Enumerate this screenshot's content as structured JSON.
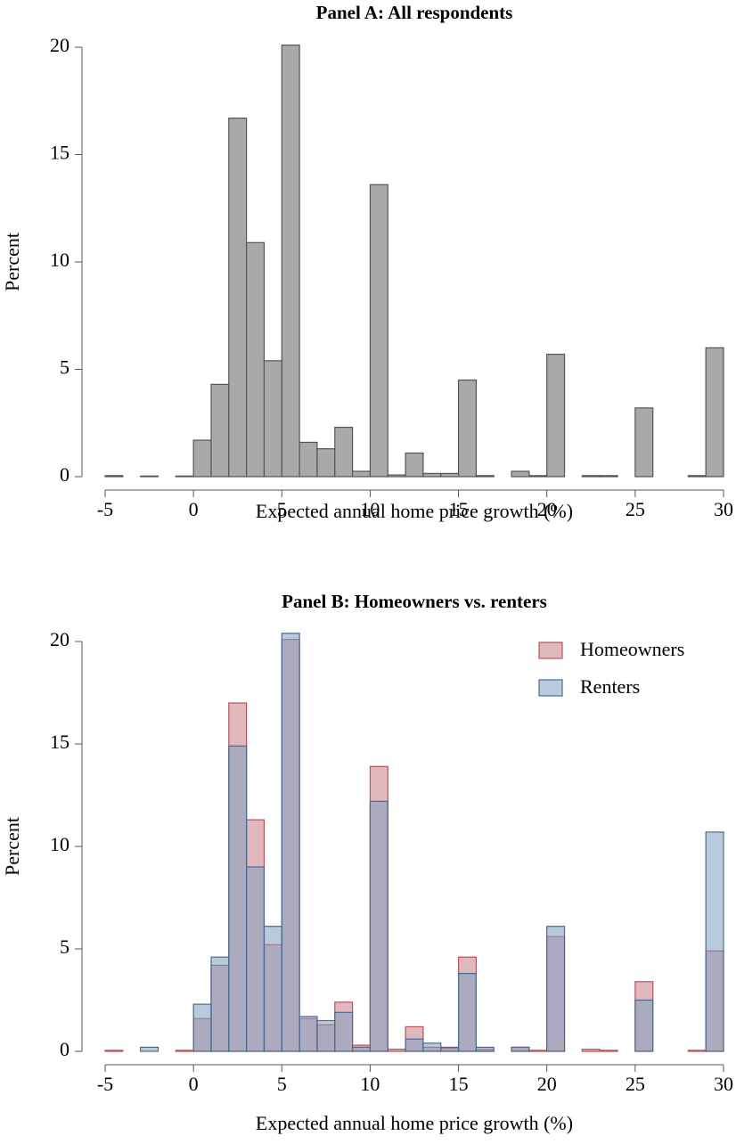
{
  "chart_data": [
    {
      "type": "histogram",
      "title": "Panel A: All respondents",
      "x_label": "Expected annual home price growth (%)",
      "y_label": "Percent",
      "bins": [
        -5,
        -4,
        -3,
        -2,
        -1,
        0,
        1,
        2,
        3,
        4,
        5,
        6,
        7,
        8,
        9,
        10,
        11,
        12,
        13,
        14,
        15,
        16,
        17,
        18,
        19,
        20,
        21,
        22,
        23,
        24,
        25,
        26,
        27,
        28,
        29,
        30
      ],
      "series": [
        {
          "name": null,
          "color": "#a9a9a9",
          "values": [
            0.05,
            0,
            0.03,
            0,
            0.03,
            1.7,
            4.3,
            16.7,
            10.9,
            5.4,
            20.1,
            1.6,
            1.3,
            2.3,
            0.25,
            13.6,
            0.08,
            1.1,
            0.15,
            0.15,
            4.5,
            0.05,
            0,
            0.25,
            0.05,
            5.7,
            0,
            0.05,
            0.05,
            0,
            3.2,
            0,
            0,
            0.05,
            6.0
          ]
        }
      ],
      "xlim": [
        -5,
        30
      ],
      "ylim": [
        0,
        20
      ],
      "xticks": [
        -5,
        0,
        5,
        10,
        15,
        20,
        25,
        30
      ],
      "yticks": [
        0,
        5,
        10,
        15,
        20
      ]
    },
    {
      "type": "histogram",
      "title": "Panel B: Homeowners vs. renters",
      "x_label": "Expected annual home price growth (%)",
      "y_label": "Percent",
      "bins": [
        -5,
        -4,
        -3,
        -2,
        -1,
        0,
        1,
        2,
        3,
        4,
        5,
        6,
        7,
        8,
        9,
        10,
        11,
        12,
        13,
        14,
        15,
        16,
        17,
        18,
        19,
        20,
        21,
        22,
        23,
        24,
        25,
        26,
        27,
        28,
        29,
        30
      ],
      "series": [
        {
          "name": "Homeowners",
          "color": "#c97d86",
          "values": [
            0.05,
            0,
            0,
            0,
            0.05,
            1.6,
            4.2,
            17.0,
            11.3,
            5.2,
            20.1,
            1.6,
            1.3,
            2.4,
            0.3,
            13.9,
            0.1,
            1.2,
            0.2,
            0.15,
            4.6,
            0.1,
            0,
            0.2,
            0.05,
            5.6,
            0,
            0.1,
            0.05,
            0,
            3.4,
            0,
            0,
            0.05,
            4.9
          ]
        },
        {
          "name": "Renters",
          "color": "#7f9fbf",
          "values": [
            0,
            0,
            0.2,
            0,
            0,
            2.3,
            4.6,
            14.9,
            9.0,
            6.1,
            20.4,
            1.7,
            1.5,
            1.9,
            0.2,
            12.2,
            0,
            0.6,
            0.4,
            0.2,
            3.8,
            0.2,
            0,
            0.2,
            0,
            6.1,
            0,
            0,
            0,
            0,
            2.5,
            0,
            0,
            0,
            10.7
          ]
        }
      ],
      "xlim": [
        -5,
        30
      ],
      "ylim": [
        0,
        20
      ],
      "xticks": [
        -5,
        0,
        5,
        10,
        15,
        20,
        25,
        30
      ],
      "yticks": [
        0,
        5,
        10,
        15,
        20
      ],
      "legend": "upper right"
    }
  ]
}
